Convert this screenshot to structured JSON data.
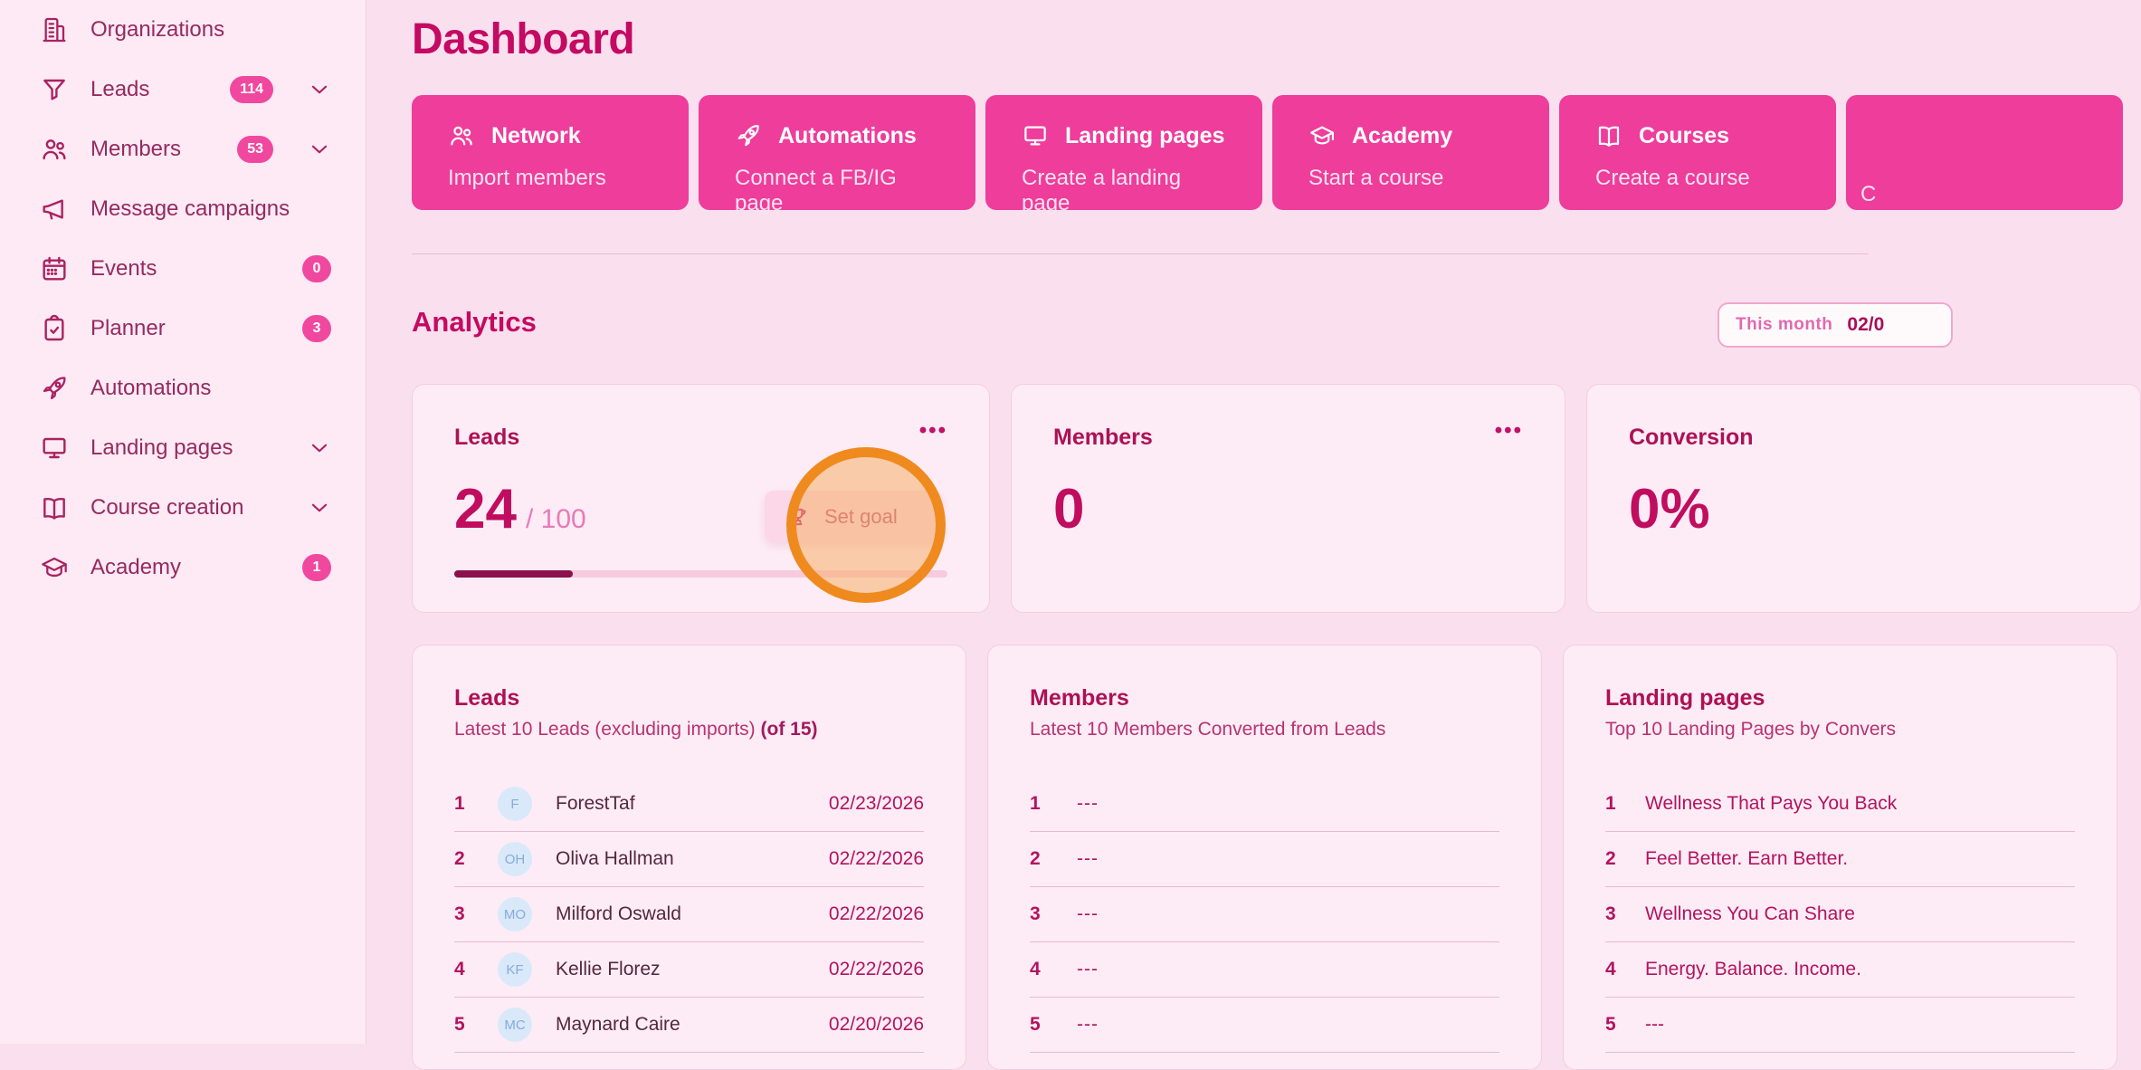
{
  "page_title": "Dashboard",
  "theme": {
    "accent_pink": "#ee3d9b",
    "badge_pink": "#f0489f",
    "heading_magenta": "#c40a62",
    "background": "#fae0ee",
    "sidebar_background": "#fdeaf4",
    "card_background": "#fdecf5",
    "annotation_orange": "#ef8a1f"
  },
  "sidebar": {
    "items": [
      {
        "label": "Organizations",
        "icon": "building-icon"
      },
      {
        "label": "Leads",
        "icon": "funnel-icon",
        "badge": "114",
        "chevron": "chevron-down-icon"
      },
      {
        "label": "Members",
        "icon": "people-icon",
        "badge": "53",
        "chevron": "chevron-down-icon"
      },
      {
        "label": "Message campaigns",
        "icon": "megaphone-icon"
      },
      {
        "label": "Events",
        "icon": "calendar-icon",
        "badge": "0"
      },
      {
        "label": "Planner",
        "icon": "clipboard-check-icon",
        "badge": "3"
      },
      {
        "label": "Automations",
        "icon": "rocket-icon"
      },
      {
        "label": "Landing pages",
        "icon": "monitor-icon",
        "chevron": "chevron-down-icon"
      },
      {
        "label": "Course creation",
        "icon": "book-icon",
        "chevron": "chevron-down-icon"
      },
      {
        "label": "Academy",
        "icon": "graduation-cap-icon",
        "badge": "1"
      }
    ]
  },
  "quick_actions": [
    {
      "icon": "people-icon",
      "title": "Network",
      "subtitle": "Import members"
    },
    {
      "icon": "rocket-icon",
      "title": "Automations",
      "subtitle": "Connect a FB/IG page"
    },
    {
      "icon": "monitor-icon",
      "title": "Landing pages",
      "subtitle": "Create a landing page"
    },
    {
      "icon": "graduation-cap-icon",
      "title": "Academy",
      "subtitle": "Start a course"
    },
    {
      "icon": "book-icon",
      "title": "Courses",
      "subtitle": "Create a course"
    },
    {
      "subtitle_fragment": "C"
    }
  ],
  "analytics": {
    "section_title": "Analytics",
    "period": {
      "label": "This month",
      "value_fragment": "02/0"
    },
    "menu_glyph": "•••",
    "stats": [
      {
        "title": "Leads",
        "value": "24",
        "goal": "/ 100",
        "progress_pct": 24
      },
      {
        "title": "Members",
        "value": "0"
      },
      {
        "title": "Conversion",
        "value": "0%"
      }
    ],
    "set_goal": {
      "label": "Set goal",
      "icon": "trophy-icon"
    }
  },
  "lists": {
    "leads": {
      "title": "Leads",
      "subtitle": "Latest 10 Leads (excluding imports) ",
      "subtitle_bold": "(of 15)",
      "rows": [
        {
          "index": "1",
          "initials": "F",
          "name": "ForestTaf",
          "date": "02/23/2026"
        },
        {
          "index": "2",
          "initials": "OH",
          "name": "Oliva Hallman",
          "date": "02/22/2026"
        },
        {
          "index": "3",
          "initials": "MO",
          "name": "Milford Oswald",
          "date": "02/22/2026"
        },
        {
          "index": "4",
          "initials": "KF",
          "name": "Kellie Florez",
          "date": "02/22/2026"
        },
        {
          "index": "5",
          "initials": "MC",
          "name": "Maynard Caire",
          "date": "02/20/2026"
        }
      ]
    },
    "members": {
      "title": "Members",
      "subtitle": "Latest 10 Members Converted from Leads",
      "rows": [
        {
          "index": "1",
          "value": "---"
        },
        {
          "index": "2",
          "value": "---"
        },
        {
          "index": "3",
          "value": "---"
        },
        {
          "index": "4",
          "value": "---"
        },
        {
          "index": "5",
          "value": "---"
        }
      ]
    },
    "landing_pages": {
      "title": "Landing pages",
      "subtitle": "Top 10 Landing Pages by Convers",
      "rows": [
        {
          "index": "1",
          "title": "Wellness That Pays You Back"
        },
        {
          "index": "2",
          "title": "Feel Better. Earn Better."
        },
        {
          "index": "3",
          "title": "Wellness You Can Share"
        },
        {
          "index": "4",
          "title": "Energy. Balance. Income."
        },
        {
          "index": "5",
          "title": "---"
        }
      ]
    }
  }
}
